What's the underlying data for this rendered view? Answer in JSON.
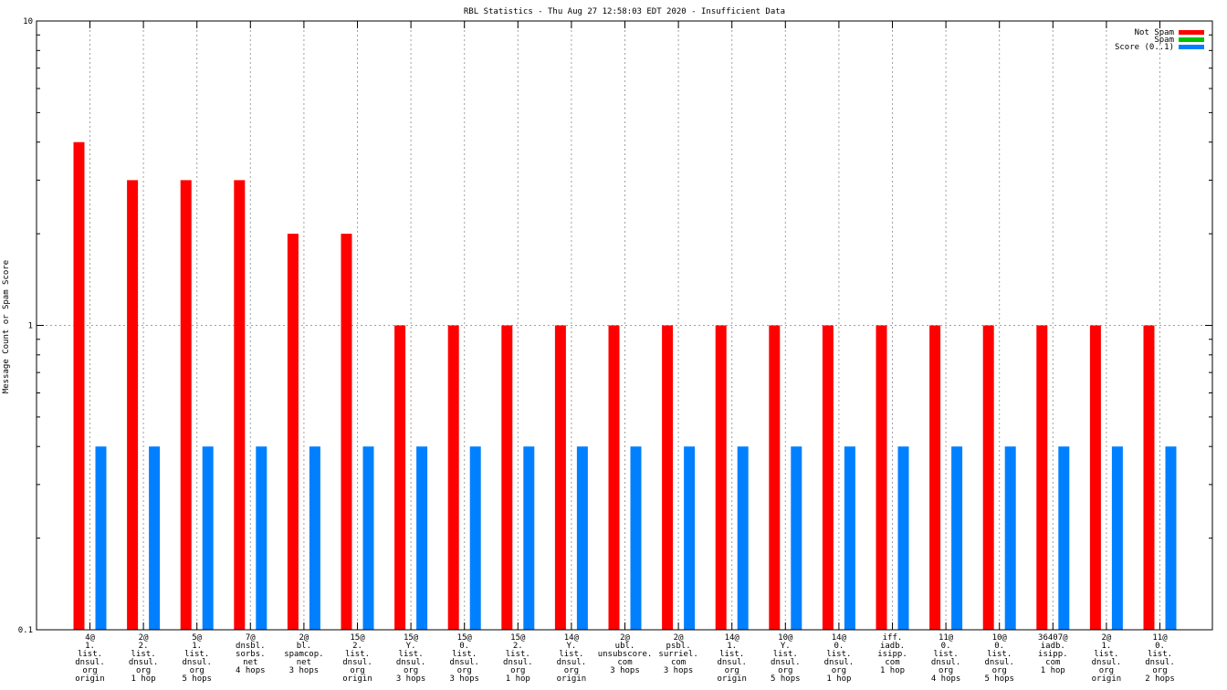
{
  "chart_data": {
    "type": "bar",
    "title": "RBL Statistics - Thu Aug 27 12:58:03 EDT 2020 - Insufficient Data",
    "xlabel": "",
    "ylabel": "Message Count or Spam Score",
    "yscale": "log",
    "ylim": [
      0.1,
      10
    ],
    "ytick_labels": [
      "0.1",
      "1",
      "10"
    ],
    "grid": true,
    "legend_position": "top-right",
    "colors": {
      "Not Spam": "#ff0000",
      "Spam": "#00c000",
      "Score (0..1)": "#0080ff"
    },
    "categories": [
      [
        "4@",
        "1.",
        "list.",
        "dnsul.",
        "org",
        "origin"
      ],
      [
        "2@",
        "2.",
        "list.",
        "dnsul.",
        "org",
        "1 hop"
      ],
      [
        "5@",
        "1.",
        "list.",
        "dnsul.",
        "org",
        "5 hops"
      ],
      [
        "7@",
        "dnsbl.",
        "sorbs.",
        "net",
        "4 hops"
      ],
      [
        "2@",
        "bl.",
        "spamcop.",
        "net",
        "3 hops"
      ],
      [
        "15@",
        "2.",
        "list.",
        "dnsul.",
        "org",
        "origin"
      ],
      [
        "15@",
        "Y.",
        "list.",
        "dnsul.",
        "org",
        "3 hops"
      ],
      [
        "15@",
        "0.",
        "list.",
        "dnsul.",
        "org",
        "3 hops"
      ],
      [
        "15@",
        "2.",
        "list.",
        "dnsul.",
        "org",
        "1 hop"
      ],
      [
        "14@",
        "Y.",
        "list.",
        "dnsul.",
        "org",
        "origin"
      ],
      [
        "2@",
        "ubl.",
        "unsubscore.",
        "com",
        "3 hops"
      ],
      [
        "2@",
        "psbl.",
        "surriel.",
        "com",
        "3 hops"
      ],
      [
        "14@",
        "1.",
        "list.",
        "dnsul.",
        "org",
        "origin"
      ],
      [
        "10@",
        "Y.",
        "list.",
        "dnsul.",
        "org",
        "5 hops"
      ],
      [
        "14@",
        "0.",
        "list.",
        "dnsul.",
        "org",
        "1 hop"
      ],
      [
        "iff.",
        "iadb.",
        "isipp.",
        "com",
        "1 hop"
      ],
      [
        "11@",
        "0.",
        "list.",
        "dnsul.",
        "org",
        "4 hops"
      ],
      [
        "10@",
        "0.",
        "list.",
        "dnsul.",
        "org",
        "5 hops"
      ],
      [
        "36407@",
        "iadb.",
        "isipp.",
        "com",
        "1 hop"
      ],
      [
        "2@",
        "1.",
        "list.",
        "dnsul.",
        "org",
        "origin"
      ],
      [
        "11@",
        "0.",
        "list.",
        "dnsul.",
        "org",
        "2 hops"
      ]
    ],
    "series": [
      {
        "name": "Not Spam",
        "values": [
          4,
          3,
          3,
          3,
          2,
          2,
          1,
          1,
          1,
          1,
          1,
          1,
          1,
          1,
          1,
          1,
          1,
          1,
          1,
          1,
          1
        ]
      },
      {
        "name": "Spam",
        "values": [
          0,
          0,
          0,
          0,
          0,
          0,
          0,
          0,
          0,
          0,
          0,
          0,
          0,
          0,
          0,
          0,
          0,
          0,
          0,
          0,
          0
        ]
      },
      {
        "name": "Score (0..1)",
        "values": [
          0.4,
          0.4,
          0.4,
          0.4,
          0.4,
          0.4,
          0.4,
          0.4,
          0.4,
          0.4,
          0.4,
          0.4,
          0.4,
          0.4,
          0.4,
          0.4,
          0.4,
          0.4,
          0.4,
          0.4,
          0.4
        ]
      }
    ]
  }
}
